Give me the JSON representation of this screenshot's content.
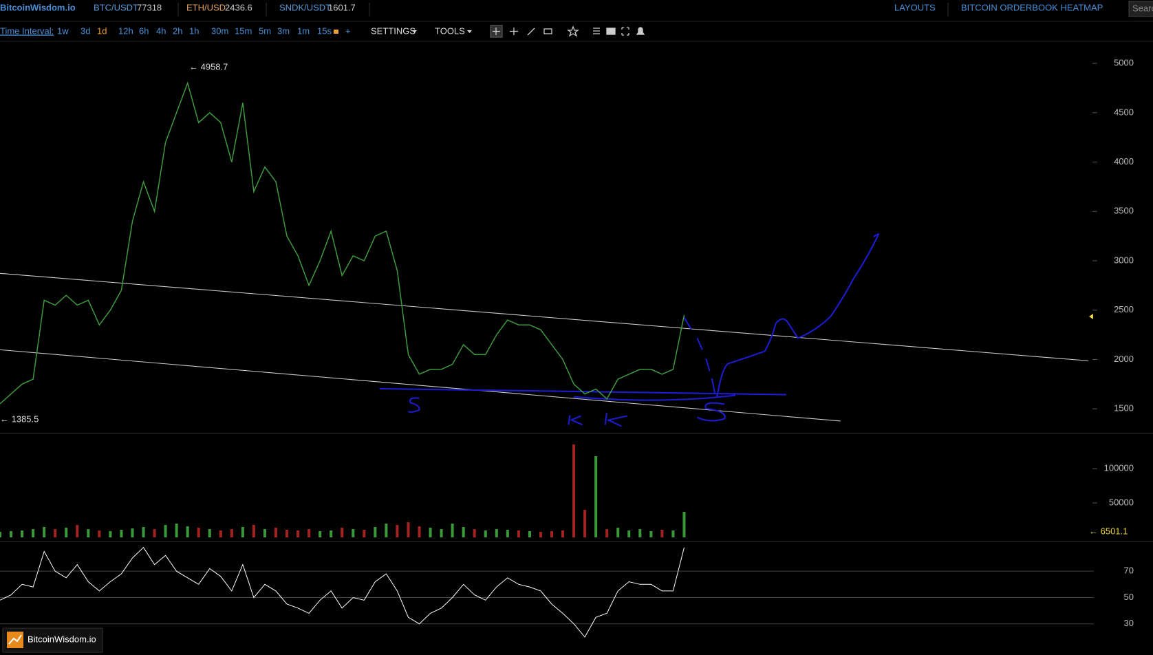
{
  "header": {
    "logo": "BitcoinWisdom.io",
    "tickers": [
      {
        "pair": "BTC/USDT",
        "price": "77318"
      },
      {
        "pair": "ETH/USD",
        "price": "2436.6"
      },
      {
        "pair": "SNDK/USDT",
        "price": "1601.7"
      }
    ],
    "links": [
      "LAYOUTS",
      "BITCOIN ORDERBOOK HEATMAP"
    ],
    "search": "Search"
  },
  "toolbar": {
    "label": "Time Interval:",
    "intervals": [
      "1w",
      "3d",
      "1d",
      "12h",
      "6h",
      "4h",
      "2h",
      "1h",
      "30m",
      "15m",
      "5m",
      "3m",
      "1m",
      "15s"
    ],
    "active_index": 2,
    "add": "+",
    "menus": [
      "SETTINGS",
      "TOOLS"
    ]
  },
  "watermark": "BitcoinWisdom.io",
  "chart_data": [
    {
      "type": "line",
      "color": "#3f9a3f",
      "values": [
        1550,
        1650,
        1750,
        1800,
        2600,
        2550,
        2650,
        2550,
        2600,
        2350,
        2500,
        2700,
        3400,
        3800,
        3500,
        4200,
        4500,
        4800,
        4400,
        4500,
        4400,
        4000,
        4600,
        3700,
        3950,
        3800,
        3250,
        3050,
        2750,
        3000,
        3300,
        2850,
        3050,
        3000,
        3250,
        3300,
        2900,
        2050,
        1850,
        1900,
        1900,
        1950,
        2150,
        2050,
        2050,
        2250,
        2400,
        2350,
        2350,
        2300,
        2150,
        2000,
        1750,
        1650,
        1700,
        1600,
        1800,
        1850,
        1900,
        1900,
        1850,
        1900,
        2450
      ],
      "ylim": [
        1250,
        5210
      ],
      "yticks": [
        1500,
        2000,
        2500,
        3000,
        3500,
        4000,
        4500,
        5000
      ],
      "annotations": [
        "← 4958.7",
        "← 1385.5"
      ]
    },
    {
      "type": "bar",
      "up_color": "#3a9a3a",
      "down_color": "#a52222",
      "values": [
        8000,
        9000,
        10000,
        12000,
        15000,
        12000,
        14000,
        18000,
        12000,
        10000,
        9000,
        11000,
        13000,
        15000,
        12000,
        18000,
        20000,
        16000,
        14000,
        12000,
        10000,
        12000,
        15000,
        18000,
        12000,
        14000,
        11000,
        10000,
        12000,
        9000,
        10000,
        14000,
        12000,
        11000,
        15000,
        20000,
        18000,
        22000,
        16000,
        14000,
        12000,
        20000,
        15000,
        12000,
        10000,
        12000,
        11000,
        10000,
        9000,
        8000,
        9000,
        10000,
        135000,
        40000,
        118000,
        12000,
        14000,
        10000,
        12000,
        9000,
        11000,
        10000,
        37000
      ],
      "ylim": [
        0,
        149000
      ],
      "yticks": [
        50000,
        100000
      ],
      "annotations": [
        "← 6501.1"
      ]
    },
    {
      "type": "line",
      "color": "#ffffff",
      "values": [
        48,
        52,
        60,
        58,
        85,
        70,
        65,
        75,
        62,
        55,
        62,
        68,
        80,
        88,
        75,
        82,
        70,
        65,
        60,
        72,
        66,
        55,
        75,
        50,
        60,
        55,
        45,
        42,
        38,
        48,
        55,
        42,
        50,
        48,
        62,
        68,
        55,
        35,
        30,
        38,
        42,
        50,
        60,
        52,
        48,
        58,
        65,
        60,
        58,
        55,
        45,
        38,
        30,
        20,
        35,
        38,
        55,
        62,
        60,
        60,
        55,
        55,
        88
      ],
      "ylim": [
        10,
        91
      ],
      "yticks": [
        30,
        50,
        70
      ],
      "grid": true
    }
  ]
}
